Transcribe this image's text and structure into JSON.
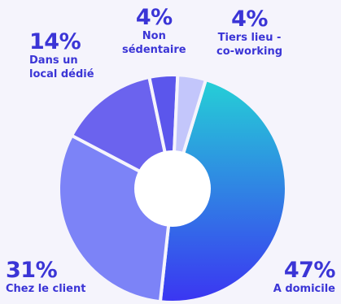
{
  "chart_data": {
    "type": "pie",
    "variant": "donut",
    "title": "",
    "slices": [
      {
        "label": "A domicile",
        "percent_text": "47%",
        "value": 47,
        "color_start": "#25d0d6",
        "color_end": "#3b35f2"
      },
      {
        "label": "Chez le client",
        "percent_text": "31%",
        "value": 31,
        "color": "#7c83f7"
      },
      {
        "label": "Dans un\nlocal dédié",
        "percent_text": "14%",
        "value": 14,
        "color": "#6b63ee"
      },
      {
        "label": "Non\nsédentaire",
        "percent_text": "4%",
        "value": 4,
        "color": "#5b56ec"
      },
      {
        "label": "Tiers lieu -\nco-working",
        "percent_text": "4%",
        "value": 4,
        "color": "#c3c6fb"
      }
    ],
    "legend": "none",
    "label_color": "#3b35d6",
    "background": "#f5f4fc"
  }
}
